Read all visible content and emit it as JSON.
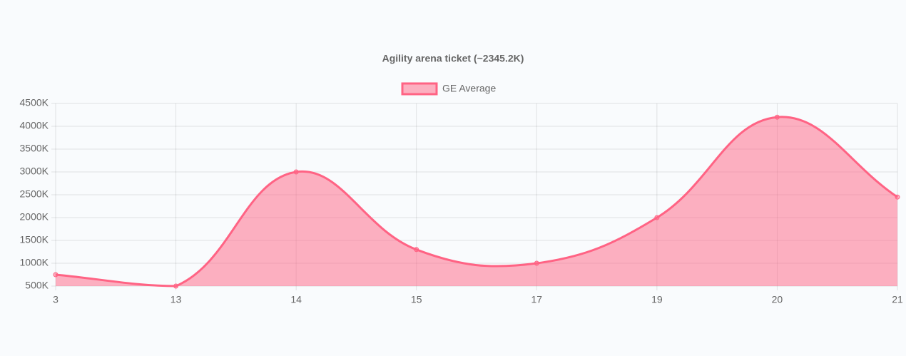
{
  "chart_data": {
    "type": "line",
    "title": "Agility arena ticket (~2345.2K)",
    "categories": [
      "3",
      "13",
      "14",
      "15",
      "17",
      "19",
      "20",
      "21"
    ],
    "series": [
      {
        "name": "GE Average",
        "color": "#ff6384",
        "values": [
          750,
          500,
          3000,
          1300,
          1000,
          2000,
          4200,
          2450
        ]
      }
    ],
    "ylim": [
      500,
      4500
    ],
    "yticks": [
      {
        "value": 500,
        "label": "500K"
      },
      {
        "value": 1000,
        "label": "1000K"
      },
      {
        "value": 1500,
        "label": "1500K"
      },
      {
        "value": 2000,
        "label": "2000K"
      },
      {
        "value": 2500,
        "label": "2500K"
      },
      {
        "value": 3000,
        "label": "3000K"
      },
      {
        "value": 3500,
        "label": "3500K"
      },
      {
        "value": 4000,
        "label": "4000K"
      },
      {
        "value": 4500,
        "label": "4500K"
      }
    ],
    "grid": true,
    "fill": true,
    "legend": "top"
  }
}
